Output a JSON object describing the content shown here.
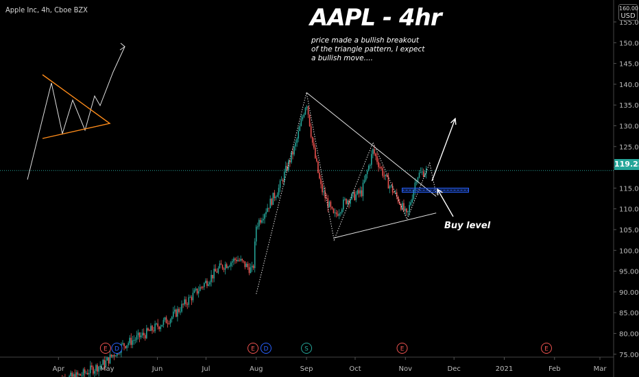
{
  "header": {
    "symbol": "Apple Inc, 4h, Cboe BZX",
    "title": "AAPL - 4hr",
    "note": "price made a bullish breakout of the triangle pattern, I expect a bullish move....",
    "buy_label": "Buy level",
    "currency": "USD",
    "currency_top": "160.00"
  },
  "colors": {
    "up": "#26a69a",
    "down": "#ef5350",
    "background": "#000000",
    "last_price_line": "#26a69a",
    "triangle_example": "#ff8c1a",
    "buy_zone": "#2962ff"
  },
  "last_price": "119.23",
  "chart_data": {
    "type": "candlestick",
    "title": "AAPL - 4hr",
    "ylim": [
      69,
      160
    ],
    "y_ticks": [
      75,
      80,
      85,
      90,
      95,
      100,
      105,
      110,
      115,
      120,
      125,
      130,
      135,
      140,
      145,
      150,
      155
    ],
    "x_ticks": [
      "Apr",
      "May",
      "Jun",
      "Jul",
      "Aug",
      "Sep",
      "Oct",
      "Nov",
      "Dec",
      "2021",
      "Feb",
      "Mar"
    ],
    "grid": false,
    "last_price": 119.23,
    "price_path": [
      [
        "2020-03-30",
        68.5
      ],
      [
        "2020-04-15",
        70
      ],
      [
        "2020-04-30",
        73
      ],
      [
        "2020-05-10",
        77
      ],
      [
        "2020-05-25",
        80
      ],
      [
        "2020-06-10",
        84
      ],
      [
        "2020-06-25",
        90
      ],
      [
        "2020-07-10",
        96
      ],
      [
        "2020-07-20",
        98
      ],
      [
        "2020-07-30",
        95
      ],
      [
        "2020-08-01",
        106
      ],
      [
        "2020-08-15",
        115
      ],
      [
        "2020-08-25",
        125
      ],
      [
        "2020-09-01",
        136
      ],
      [
        "2020-09-05",
        125
      ],
      [
        "2020-09-10",
        115
      ],
      [
        "2020-09-18",
        108
      ],
      [
        "2020-09-25",
        112
      ],
      [
        "2020-10-05",
        114
      ],
      [
        "2020-10-12",
        124
      ],
      [
        "2020-10-20",
        117
      ],
      [
        "2020-10-28",
        112
      ],
      [
        "2020-11-02",
        108
      ],
      [
        "2020-11-08",
        118
      ],
      [
        "2020-11-14",
        119.23
      ]
    ],
    "patterns": [
      {
        "type": "line",
        "points": [
          [
            "2020-08-01",
            89.5
          ],
          [
            "2020-09-01",
            138
          ],
          [
            "2020-09-18",
            102.5
          ],
          [
            "2020-10-12",
            126
          ],
          [
            "2020-11-02",
            107.5
          ],
          [
            "2020-11-16",
            121
          ],
          [
            "2020-11-20",
            113.5
          ]
        ]
      },
      {
        "type": "trendline",
        "points": [
          [
            "2020-09-01",
            138
          ],
          [
            "2020-11-20",
            113
          ]
        ]
      },
      {
        "type": "trendline",
        "points": [
          [
            "2020-09-18",
            103
          ],
          [
            "2020-11-20",
            109
          ]
        ]
      }
    ],
    "buy_zone": {
      "x": [
        "2020-10-30",
        "2020-12-10"
      ],
      "y": [
        114,
        115
      ]
    },
    "events": [
      {
        "date": "2020-04-30",
        "label": "E"
      },
      {
        "date": "2020-05-07",
        "label": "D"
      },
      {
        "date": "2020-07-30",
        "label": "E"
      },
      {
        "date": "2020-08-07",
        "label": "D"
      },
      {
        "date": "2020-09-01",
        "label": "S"
      },
      {
        "date": "2020-10-30",
        "label": "E"
      },
      {
        "date": "2021-01-27",
        "label": "E"
      }
    ]
  }
}
